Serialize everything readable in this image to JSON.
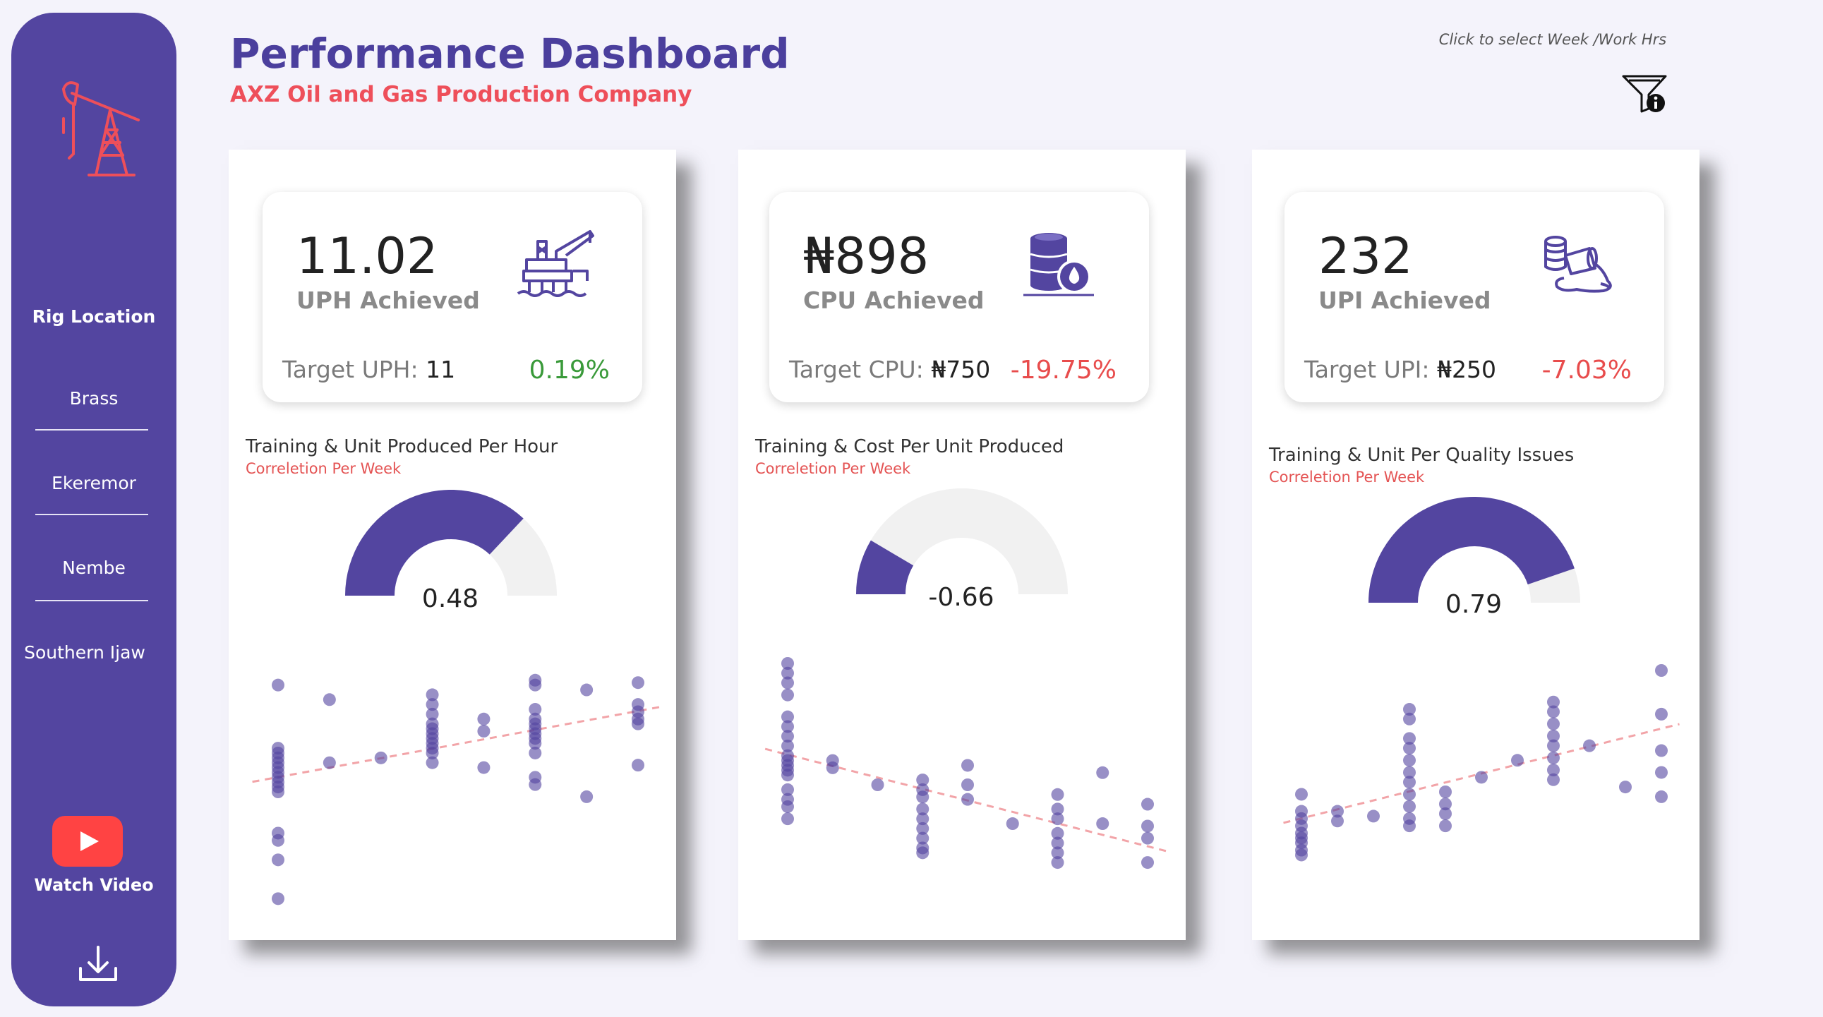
{
  "header": {
    "title": "Performance Dashboard",
    "subtitle": "AXZ Oil and Gas Production Company",
    "filter_hint": "Click to select Week /Work Hrs"
  },
  "sidebar": {
    "nav_title": "Rig  Location",
    "locations": [
      "Brass",
      "Ekeremor",
      "Nembe",
      "Southern Ijaw"
    ],
    "video_label": "Watch Video"
  },
  "colors": {
    "primary": "#5345a0",
    "accent_red": "#ee4f5a",
    "positive": "#3a9a3a",
    "negative": "#e84c4c",
    "gauge_track": "#f1f1f1"
  },
  "panels": [
    {
      "kpi_value": "11.02",
      "kpi_label": "UPH Achieved",
      "target_label": "Target UPH:",
      "target_value": "11",
      "pct": "0.19%",
      "pct_status": "positive",
      "icon": "offshore-rig-icon",
      "chart_title": "Training & Unit Produced Per Hour",
      "chart_subtitle": "Correletion Per Week",
      "correlation_label": "0.48"
    },
    {
      "kpi_value": "₦898",
      "kpi_label": "CPU Achieved",
      "target_label": "Target CPU:",
      "target_value": "₦750",
      "pct": "-19.75%",
      "pct_status": "negative",
      "icon": "oil-barrel-icon",
      "chart_title": "Training & Cost Per Unit Produced",
      "chart_subtitle": "Correletion Per Week",
      "correlation_label": "-0.66"
    },
    {
      "kpi_value": "232",
      "kpi_label": "UPI Achieved",
      "target_label": "Target UPI:",
      "target_value": "₦250",
      "pct": "-7.03%",
      "pct_status": "negative",
      "icon": "oil-spill-icon",
      "chart_title": "Training & Unit Per Quality Issues",
      "chart_subtitle": "Correletion Per Week",
      "correlation_label": "0.79"
    }
  ],
  "chart_data": [
    {
      "type": "gauge",
      "value": 0.48,
      "min": -1,
      "max": 1
    },
    {
      "type": "gauge",
      "value": -0.66,
      "min": -1,
      "max": 1
    },
    {
      "type": "gauge",
      "value": 0.79,
      "min": -1,
      "max": 1
    },
    {
      "type": "scatter",
      "trendline": true,
      "points": [
        [
          1,
          0.94
        ],
        [
          1,
          0.68
        ],
        [
          1,
          0.66
        ],
        [
          1,
          0.64
        ],
        [
          1,
          0.62
        ],
        [
          1,
          0.6
        ],
        [
          1,
          0.58
        ],
        [
          1,
          0.56
        ],
        [
          1,
          0.54
        ],
        [
          1,
          0.52
        ],
        [
          1,
          0.5
        ],
        [
          1,
          0.33
        ],
        [
          1,
          0.3
        ],
        [
          1,
          0.22
        ],
        [
          1,
          0.06
        ],
        [
          2,
          0.88
        ],
        [
          2,
          0.62
        ],
        [
          3,
          0.64
        ],
        [
          4,
          0.9
        ],
        [
          4,
          0.86
        ],
        [
          4,
          0.82
        ],
        [
          4,
          0.78
        ],
        [
          4,
          0.76
        ],
        [
          4,
          0.74
        ],
        [
          4,
          0.72
        ],
        [
          4,
          0.7
        ],
        [
          4,
          0.68
        ],
        [
          4,
          0.66
        ],
        [
          4,
          0.62
        ],
        [
          5,
          0.8
        ],
        [
          5,
          0.75
        ],
        [
          5,
          0.6
        ],
        [
          6,
          0.96
        ],
        [
          6,
          0.94
        ],
        [
          6,
          0.84
        ],
        [
          6,
          0.8
        ],
        [
          6,
          0.78
        ],
        [
          6,
          0.76
        ],
        [
          6,
          0.74
        ],
        [
          6,
          0.72
        ],
        [
          6,
          0.7
        ],
        [
          6,
          0.66
        ],
        [
          6,
          0.56
        ],
        [
          6,
          0.53
        ],
        [
          7,
          0.92
        ],
        [
          7,
          0.48
        ],
        [
          8,
          0.95
        ],
        [
          8,
          0.86
        ],
        [
          8,
          0.83
        ],
        [
          8,
          0.8
        ],
        [
          8,
          0.78
        ],
        [
          8,
          0.61
        ]
      ]
    },
    {
      "type": "scatter",
      "trendline": true,
      "points": [
        [
          1,
          1.0
        ],
        [
          1,
          0.96
        ],
        [
          1,
          0.92
        ],
        [
          1,
          0.87
        ],
        [
          1,
          0.78
        ],
        [
          1,
          0.74
        ],
        [
          1,
          0.7
        ],
        [
          1,
          0.66
        ],
        [
          1,
          0.62
        ],
        [
          1,
          0.6
        ],
        [
          1,
          0.58
        ],
        [
          1,
          0.56
        ],
        [
          1,
          0.54
        ],
        [
          1,
          0.48
        ],
        [
          1,
          0.44
        ],
        [
          1,
          0.41
        ],
        [
          1,
          0.36
        ],
        [
          2,
          0.6
        ],
        [
          2,
          0.57
        ],
        [
          3,
          0.5
        ],
        [
          4,
          0.52
        ],
        [
          4,
          0.48
        ],
        [
          4,
          0.45
        ],
        [
          4,
          0.4
        ],
        [
          4,
          0.36
        ],
        [
          4,
          0.32
        ],
        [
          4,
          0.28
        ],
        [
          4,
          0.24
        ],
        [
          4,
          0.22
        ],
        [
          5,
          0.58
        ],
        [
          5,
          0.5
        ],
        [
          5,
          0.44
        ],
        [
          6,
          0.34
        ],
        [
          7,
          0.46
        ],
        [
          7,
          0.4
        ],
        [
          7,
          0.36
        ],
        [
          7,
          0.3
        ],
        [
          7,
          0.26
        ],
        [
          7,
          0.22
        ],
        [
          7,
          0.18
        ],
        [
          8,
          0.55
        ],
        [
          8,
          0.34
        ],
        [
          9,
          0.42
        ],
        [
          9,
          0.33
        ],
        [
          9,
          0.28
        ],
        [
          9,
          0.18
        ]
      ]
    },
    {
      "type": "scatter",
      "trendline": true,
      "points": [
        [
          1,
          0.49
        ],
        [
          1,
          0.42
        ],
        [
          1,
          0.39
        ],
        [
          1,
          0.36
        ],
        [
          1,
          0.33
        ],
        [
          1,
          0.31
        ],
        [
          1,
          0.29
        ],
        [
          1,
          0.26
        ],
        [
          1,
          0.24
        ],
        [
          2,
          0.42
        ],
        [
          2,
          0.38
        ],
        [
          3,
          0.4
        ],
        [
          4,
          0.84
        ],
        [
          4,
          0.8
        ],
        [
          4,
          0.72
        ],
        [
          4,
          0.68
        ],
        [
          4,
          0.63
        ],
        [
          4,
          0.58
        ],
        [
          4,
          0.54
        ],
        [
          4,
          0.49
        ],
        [
          4,
          0.44
        ],
        [
          4,
          0.39
        ],
        [
          4,
          0.36
        ],
        [
          5,
          0.5
        ],
        [
          5,
          0.45
        ],
        [
          5,
          0.41
        ],
        [
          5,
          0.36
        ],
        [
          6,
          0.56
        ],
        [
          7,
          0.63
        ],
        [
          8,
          0.87
        ],
        [
          8,
          0.83
        ],
        [
          8,
          0.78
        ],
        [
          8,
          0.73
        ],
        [
          8,
          0.69
        ],
        [
          8,
          0.64
        ],
        [
          8,
          0.59
        ],
        [
          8,
          0.55
        ],
        [
          9,
          0.69
        ],
        [
          10,
          0.52
        ],
        [
          11,
          1.0
        ],
        [
          11,
          0.82
        ],
        [
          11,
          0.67
        ],
        [
          11,
          0.58
        ],
        [
          11,
          0.48
        ]
      ]
    }
  ]
}
